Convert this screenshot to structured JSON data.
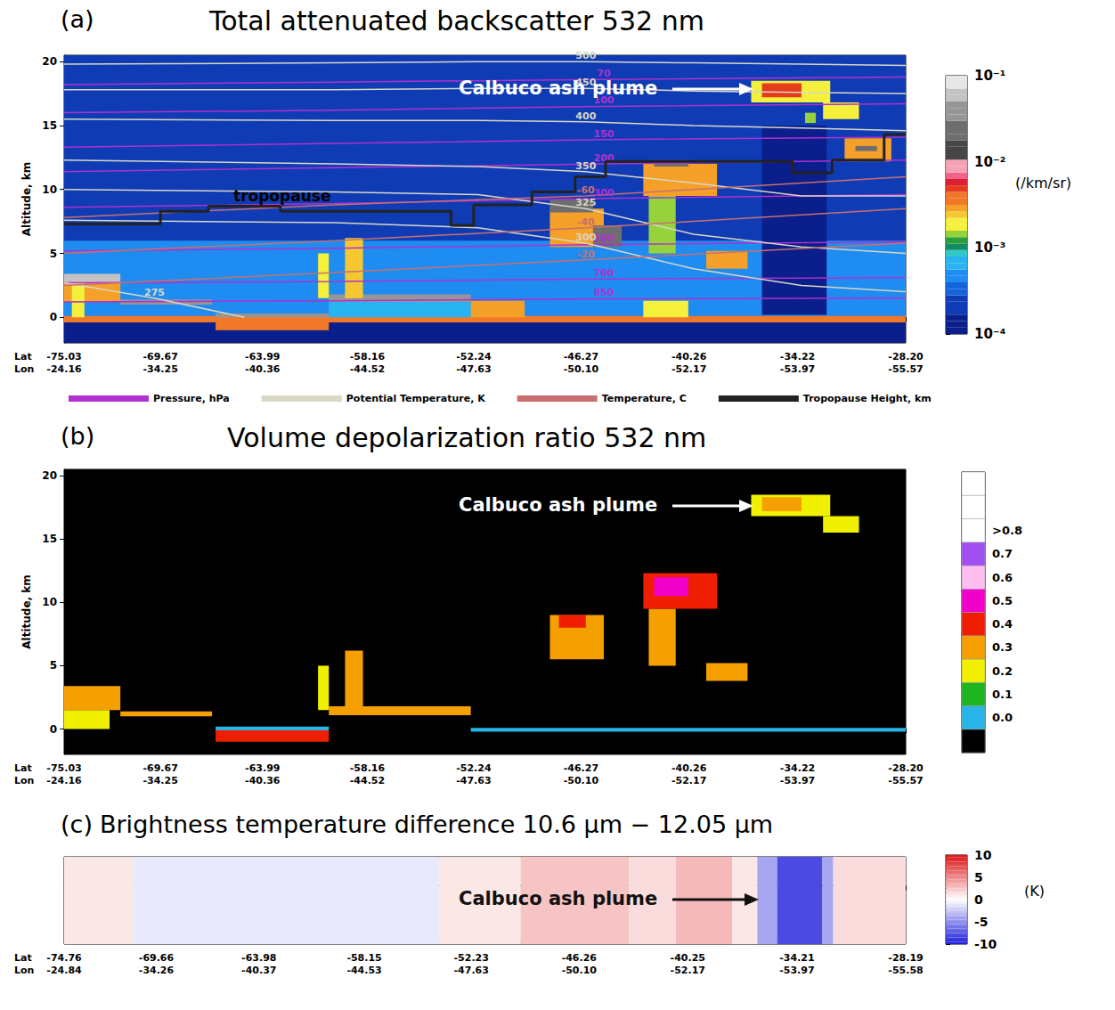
{
  "chart_data": [
    {
      "type": "heatmap",
      "panel_label": "(a)",
      "title": "Total attenuated backscatter 532 nm",
      "ylabel": "Altitude, km",
      "x_row_labels": [
        "Lat",
        "Lon"
      ],
      "xlim": [
        -75.03,
        -28.2
      ],
      "xticks": [
        -75.03,
        -69.67,
        -63.99,
        -58.16,
        -52.24,
        -46.27,
        -40.26,
        -34.22,
        {
          "value": -28.2,
          "label": "-28.20"
        }
      ],
      "xticks_lon": [
        -24.16,
        -34.25,
        -40.36,
        -44.52,
        -47.63,
        {
          "value": -50.1,
          "label": "-50.10"
        },
        -52.17,
        -53.97,
        -55.57
      ],
      "ylim": [
        -2,
        20.5
      ],
      "yticks": [
        0,
        5,
        10,
        15,
        20
      ],
      "cells": [
        [
          -75.03,
          -28.2,
          -2,
          20.5,
          0.00018
        ],
        [
          -75.03,
          -28.2,
          0,
          6,
          0.0004
        ],
        [
          -75.03,
          -28.2,
          -2,
          -0.4,
          0.0001
        ],
        [
          -36.2,
          -32.6,
          0.2,
          15,
          0.00012
        ],
        [
          -75.03,
          -28.2,
          -0.4,
          0.1,
          0.004
        ],
        [
          -75.03,
          -71.9,
          1.2,
          2.7,
          0.003
        ],
        [
          -74.6,
          -73.9,
          0,
          2.7,
          0.002
        ],
        [
          -75.03,
          -71.9,
          2.7,
          3.4,
          0.06
        ],
        [
          -71.9,
          -66.8,
          1.0,
          1.4,
          0.04
        ],
        [
          -66.6,
          -60.3,
          -1.0,
          0.0,
          0.004
        ],
        [
          -66.6,
          -60.3,
          0.0,
          0.3,
          0.04
        ],
        [
          -60.3,
          -52.4,
          0,
          1.2,
          0.0006
        ],
        [
          -60.3,
          -52.4,
          1.2,
          1.8,
          0.04
        ],
        [
          -60.9,
          -60.3,
          1.5,
          5,
          0.002
        ],
        [
          -59.4,
          -58.4,
          1.5,
          6.2,
          0.0025
        ],
        [
          -52.4,
          -49.4,
          0,
          1.3,
          0.003
        ],
        [
          -48.0,
          -45.0,
          5.5,
          8.5,
          0.003
        ],
        [
          -48.0,
          -45.6,
          8.2,
          9.2,
          0.02
        ],
        [
          -45.6,
          -44.0,
          5.5,
          7.2,
          0.02
        ],
        [
          -42.8,
          -40.3,
          0,
          1.3,
          0.002
        ],
        [
          -42.5,
          -41.0,
          5,
          9.5,
          0.0015
        ],
        [
          -42.8,
          -38.7,
          9.5,
          12,
          0.003
        ],
        [
          -42.2,
          -40.3,
          11.8,
          12.3,
          0.02
        ],
        [
          -39.3,
          -37.0,
          3.8,
          5.2,
          0.003
        ],
        [
          -36.8,
          -32.4,
          16.8,
          18.5,
          0.002
        ],
        [
          -36.2,
          -34.0,
          17.2,
          18.3,
          0.005
        ],
        [
          -33.8,
          -33.2,
          15.2,
          16.0,
          0.0015
        ],
        [
          -32.8,
          -30.8,
          15.5,
          16.8,
          0.002
        ],
        [
          -31.6,
          -29.0,
          12.2,
          14.0,
          0.003
        ],
        [
          -31.0,
          -29.8,
          13.0,
          13.4,
          0.02
        ]
      ],
      "colorbar": {
        "label": "(/km/sr)",
        "log": true,
        "lim": [
          0.0001,
          0.1
        ],
        "ticks": [
          {
            "value": 0.0001,
            "label": "10⁻⁴"
          },
          {
            "value": 0.001,
            "label": "10⁻³"
          },
          {
            "value": 0.01,
            "label": "10⁻²"
          },
          {
            "value": 0.1,
            "label": "10⁻¹"
          }
        ]
      },
      "annotations": [
        {
          "text": "Calbuco ash plume"
        },
        {
          "text": "tropopause"
        }
      ],
      "legend": "bottom",
      "series": [
        {
          "name": "Pressure, hPa",
          "type": "line",
          "color": "#b030d0",
          "lines": [
            {
              "level": 70,
              "x": [
                -75.03,
                -60,
                -45,
                -28.2
              ],
              "y": [
                18.2,
                18.4,
                18.6,
                18.8
              ]
            },
            {
              "level": 100,
              "x": [
                -75.03,
                -60,
                -45,
                -28.2
              ],
              "y": [
                16.0,
                16.2,
                16.5,
                16.7
              ]
            },
            {
              "level": 150,
              "x": [
                -75.03,
                -60,
                -45,
                -28.2
              ],
              "y": [
                13.3,
                13.6,
                13.9,
                14.1
              ]
            },
            {
              "level": 200,
              "x": [
                -75.03,
                -60,
                -45,
                -28.2
              ],
              "y": [
                11.4,
                11.7,
                12.0,
                12.3
              ]
            },
            {
              "level": 300,
              "x": [
                -75.03,
                -60,
                -45,
                -28.2
              ],
              "y": [
                8.6,
                8.9,
                9.3,
                9.6
              ]
            },
            {
              "level": 500,
              "x": [
                -75.03,
                -60,
                -45,
                -28.2
              ],
              "y": [
                5.2,
                5.4,
                5.7,
                5.9
              ]
            },
            {
              "level": 700,
              "x": [
                -75.03,
                -60,
                -45,
                -28.2
              ],
              "y": [
                2.7,
                2.8,
                3.0,
                3.1
              ]
            },
            {
              "level": 850,
              "x": [
                -75.03,
                -60,
                -45,
                -28.2
              ],
              "y": [
                1.2,
                1.3,
                1.45,
                1.5
              ]
            }
          ]
        },
        {
          "name": "Potential Temperature, K",
          "type": "line",
          "color": "#d8d8c4",
          "lines": [
            {
              "level": 275,
              "x": [
                -75.03,
                -70,
                -65
              ],
              "y": [
                2.7,
                1.5,
                0
              ]
            },
            {
              "level": 300,
              "x": [
                -75.03,
                -60,
                -52,
                -46,
                -40,
                -34,
                -28.2
              ],
              "y": [
                7.6,
                7.4,
                7.0,
                5.8,
                3.8,
                2.5,
                2.0
              ]
            },
            {
              "level": 325,
              "x": [
                -75.03,
                -60,
                -52,
                -46,
                -40,
                -34,
                -28.2
              ],
              "y": [
                10.0,
                9.8,
                9.6,
                8.5,
                6.5,
                5.5,
                5.0
              ]
            },
            {
              "level": 350,
              "x": [
                -75.03,
                -60,
                -52,
                -46,
                -40,
                -34,
                -28.2
              ],
              "y": [
                12.3,
                12.0,
                11.8,
                11.4,
                10.5,
                9.5,
                9.5
              ]
            },
            {
              "level": 400,
              "x": [
                -75.03,
                -60,
                -52,
                -46,
                -40,
                -34,
                -28.2
              ],
              "y": [
                15.5,
                15.4,
                15.4,
                15.3,
                15.0,
                14.8,
                14.6
              ]
            },
            {
              "level": 450,
              "x": [
                -75.03,
                -60,
                -52,
                -46,
                -40,
                -34,
                -28.2
              ],
              "y": [
                17.8,
                17.8,
                17.9,
                17.9,
                17.7,
                17.6,
                17.5
              ]
            },
            {
              "level": 500,
              "x": [
                -75.03,
                -60,
                -52,
                -46,
                -40,
                -34,
                -28.2
              ],
              "y": [
                19.8,
                19.9,
                20.0,
                20.0,
                19.9,
                19.8,
                19.7
              ]
            }
          ]
        },
        {
          "name": "Temperature, C",
          "type": "line",
          "color": "#c87070",
          "lines": [
            {
              "level": -20,
              "x": [
                -75.03,
                -60,
                -46,
                -28.2
              ],
              "y": [
                2.5,
                3.5,
                4.5,
                5.8
              ]
            },
            {
              "level": -40,
              "x": [
                -75.03,
                -60,
                -46,
                -28.2
              ],
              "y": [
                5.0,
                6.0,
                7.0,
                8.5
              ]
            },
            {
              "level": -60,
              "x": [
                -75.03,
                -60,
                -46,
                -28.2
              ],
              "y": [
                7.8,
                8.8,
                9.5,
                11.0
              ]
            }
          ]
        },
        {
          "name": "Tropopause Height, km",
          "type": "step",
          "color": "#222222",
          "x": [
            -75.03,
            -69.67,
            -67,
            -63,
            -53.5,
            -52.24,
            -49,
            -46.6,
            -44.9,
            -34.5,
            -32.3,
            -29.4,
            -28.2
          ],
          "y": [
            7.3,
            8.3,
            8.7,
            8.3,
            7.2,
            8.8,
            9.8,
            11,
            12.2,
            11.3,
            12.3,
            14.3,
            14.3
          ]
        }
      ]
    },
    {
      "type": "heatmap",
      "panel_label": "(b)",
      "title": "Volume depolarization ratio 532 nm",
      "ylabel": "Altitude, km",
      "x_row_labels": [
        "Lat",
        "Lon"
      ],
      "xlim": [
        -75.03,
        -28.2
      ],
      "xticks": [
        -75.03,
        -69.67,
        -63.99,
        -58.16,
        -52.24,
        -46.27,
        -40.26,
        -34.22,
        {
          "value": -28.2,
          "label": "-28.20"
        }
      ],
      "xticks_lon": [
        -24.16,
        -34.25,
        -40.36,
        -44.52,
        -47.63,
        {
          "value": -50.1,
          "label": "-50.10"
        },
        -52.17,
        -53.97,
        -55.57
      ],
      "ylim": [
        -2,
        20.5
      ],
      "yticks": [
        0,
        5,
        10,
        15,
        20
      ],
      "cells": [
        [
          -75.03,
          -28.2,
          -2,
          20.5,
          -0.1
        ],
        [
          -75.03,
          -72.5,
          0,
          1.5,
          0.2
        ],
        [
          -75.03,
          -71.9,
          1.5,
          3.4,
          0.3
        ],
        [
          -71.9,
          -66.8,
          1.0,
          1.4,
          0.3
        ],
        [
          -66.6,
          -60.3,
          -1.0,
          -0.1,
          0.4
        ],
        [
          -66.6,
          -60.3,
          -0.1,
          0.2,
          0.0
        ],
        [
          -60.3,
          -52.4,
          1.1,
          1.8,
          0.3
        ],
        [
          -60.9,
          -60.3,
          1.5,
          5,
          0.2
        ],
        [
          -59.4,
          -58.4,
          1.5,
          6.2,
          0.3
        ],
        [
          -52.4,
          -28.2,
          -0.2,
          0.1,
          0.0
        ],
        [
          -48.0,
          -45.0,
          5.5,
          9.0,
          0.3
        ],
        [
          -47.5,
          -46.0,
          8.0,
          9.0,
          0.4
        ],
        [
          -42.5,
          -41.0,
          5,
          9.5,
          0.3
        ],
        [
          -42.8,
          -38.7,
          9.5,
          12.3,
          0.4
        ],
        [
          -42.2,
          -40.3,
          10.5,
          12.0,
          0.5
        ],
        [
          -39.3,
          -37.0,
          3.8,
          5.2,
          0.3
        ],
        [
          -36.8,
          -32.4,
          16.8,
          18.5,
          0.2
        ],
        [
          -36.2,
          -34.0,
          17.2,
          18.3,
          0.3
        ],
        [
          -32.8,
          -30.8,
          15.5,
          16.8,
          0.2
        ]
      ],
      "colorbar": {
        "lim": [
          -0.15,
          1.05
        ],
        "ticks": [
          {
            "value": 0,
            "label": "0.0"
          },
          0.1,
          0.2,
          0.3,
          0.4,
          0.5,
          0.6,
          0.7,
          {
            "value": 0.8,
            "label": ">0.8"
          }
        ]
      },
      "annotations": [
        {
          "text": "Calbuco ash plume"
        }
      ]
    },
    {
      "type": "strip",
      "panel_label": "(c)",
      "title": "Brightness temperature difference 10.6 µm − 12.05 µm",
      "x_row_labels": [
        "Lat",
        "Lon"
      ],
      "xlim": [
        -74.76,
        -28.19
      ],
      "xticks": [
        -74.76,
        -69.66,
        -63.98,
        -58.15,
        -52.23,
        -46.26,
        -40.25,
        -34.21,
        -28.19
      ],
      "xticks_lon": [
        -24.84,
        -34.26,
        -40.37,
        -44.53,
        -47.63,
        {
          "value": -50.1,
          "label": "-50.10"
        },
        -52.17,
        -53.97,
        -55.58
      ],
      "segments": [
        [
          -74.76,
          -70.9,
          1
        ],
        [
          -70.9,
          -54.0,
          -1
        ],
        [
          -54.0,
          -49.5,
          1
        ],
        [
          -49.5,
          -43.5,
          2.5
        ],
        [
          -43.5,
          -40.9,
          1.5
        ],
        [
          -40.9,
          -37.8,
          3
        ],
        [
          -37.8,
          -36.4,
          1
        ],
        [
          -36.4,
          -35.3,
          -4
        ],
        [
          -35.3,
          -32.8,
          -8
        ],
        [
          -32.8,
          -32.2,
          -4
        ],
        [
          -32.2,
          -28.19,
          1.5
        ]
      ],
      "colorbar": {
        "label": "(K)",
        "lim": [
          -10,
          10
        ],
        "ticks": [
          -10,
          -5,
          0,
          5,
          10
        ]
      },
      "annotations": [
        {
          "text": "Calbuco ash plume"
        }
      ]
    }
  ]
}
